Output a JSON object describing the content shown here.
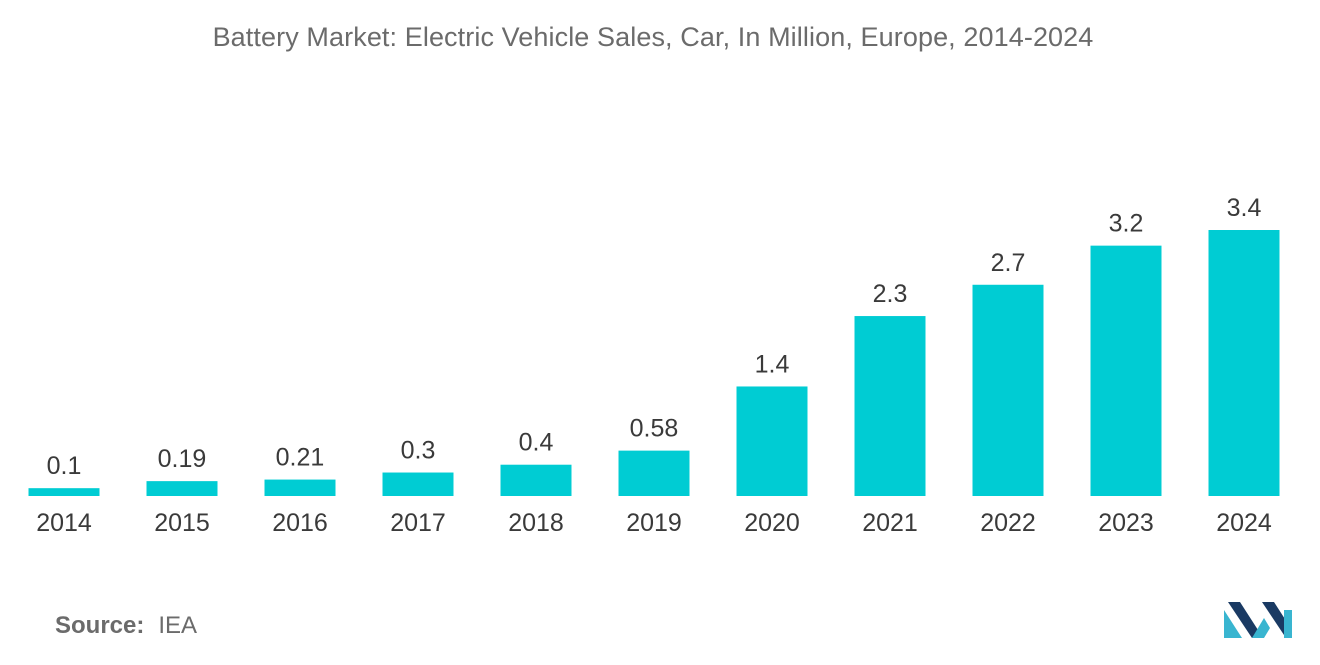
{
  "chart_data": {
    "type": "bar",
    "title": "Battery Market: Electric Vehicle Sales, Car, In Million, Europe, 2014-2024",
    "categories": [
      "2014",
      "2015",
      "2016",
      "2017",
      "2018",
      "2019",
      "2020",
      "2021",
      "2022",
      "2023",
      "2024"
    ],
    "values": [
      0.1,
      0.19,
      0.21,
      0.3,
      0.4,
      0.58,
      1.4,
      2.3,
      2.7,
      3.2,
      3.4
    ],
    "value_labels": [
      "0.1",
      "0.19",
      "0.21",
      "0.3",
      "0.4",
      "0.58",
      "1.4",
      "2.3",
      "2.7",
      "3.2",
      "3.4"
    ],
    "xlabel": "",
    "ylabel": "",
    "ylim": [
      0,
      3.4
    ],
    "grid": false,
    "bar_color": "#00ccd3"
  },
  "source": {
    "label": "Source:",
    "value": "IEA"
  },
  "logo": {
    "icon": "mordor-intelligence-logo-icon",
    "colors": [
      "#1a3a63",
      "#39b5d0"
    ]
  }
}
